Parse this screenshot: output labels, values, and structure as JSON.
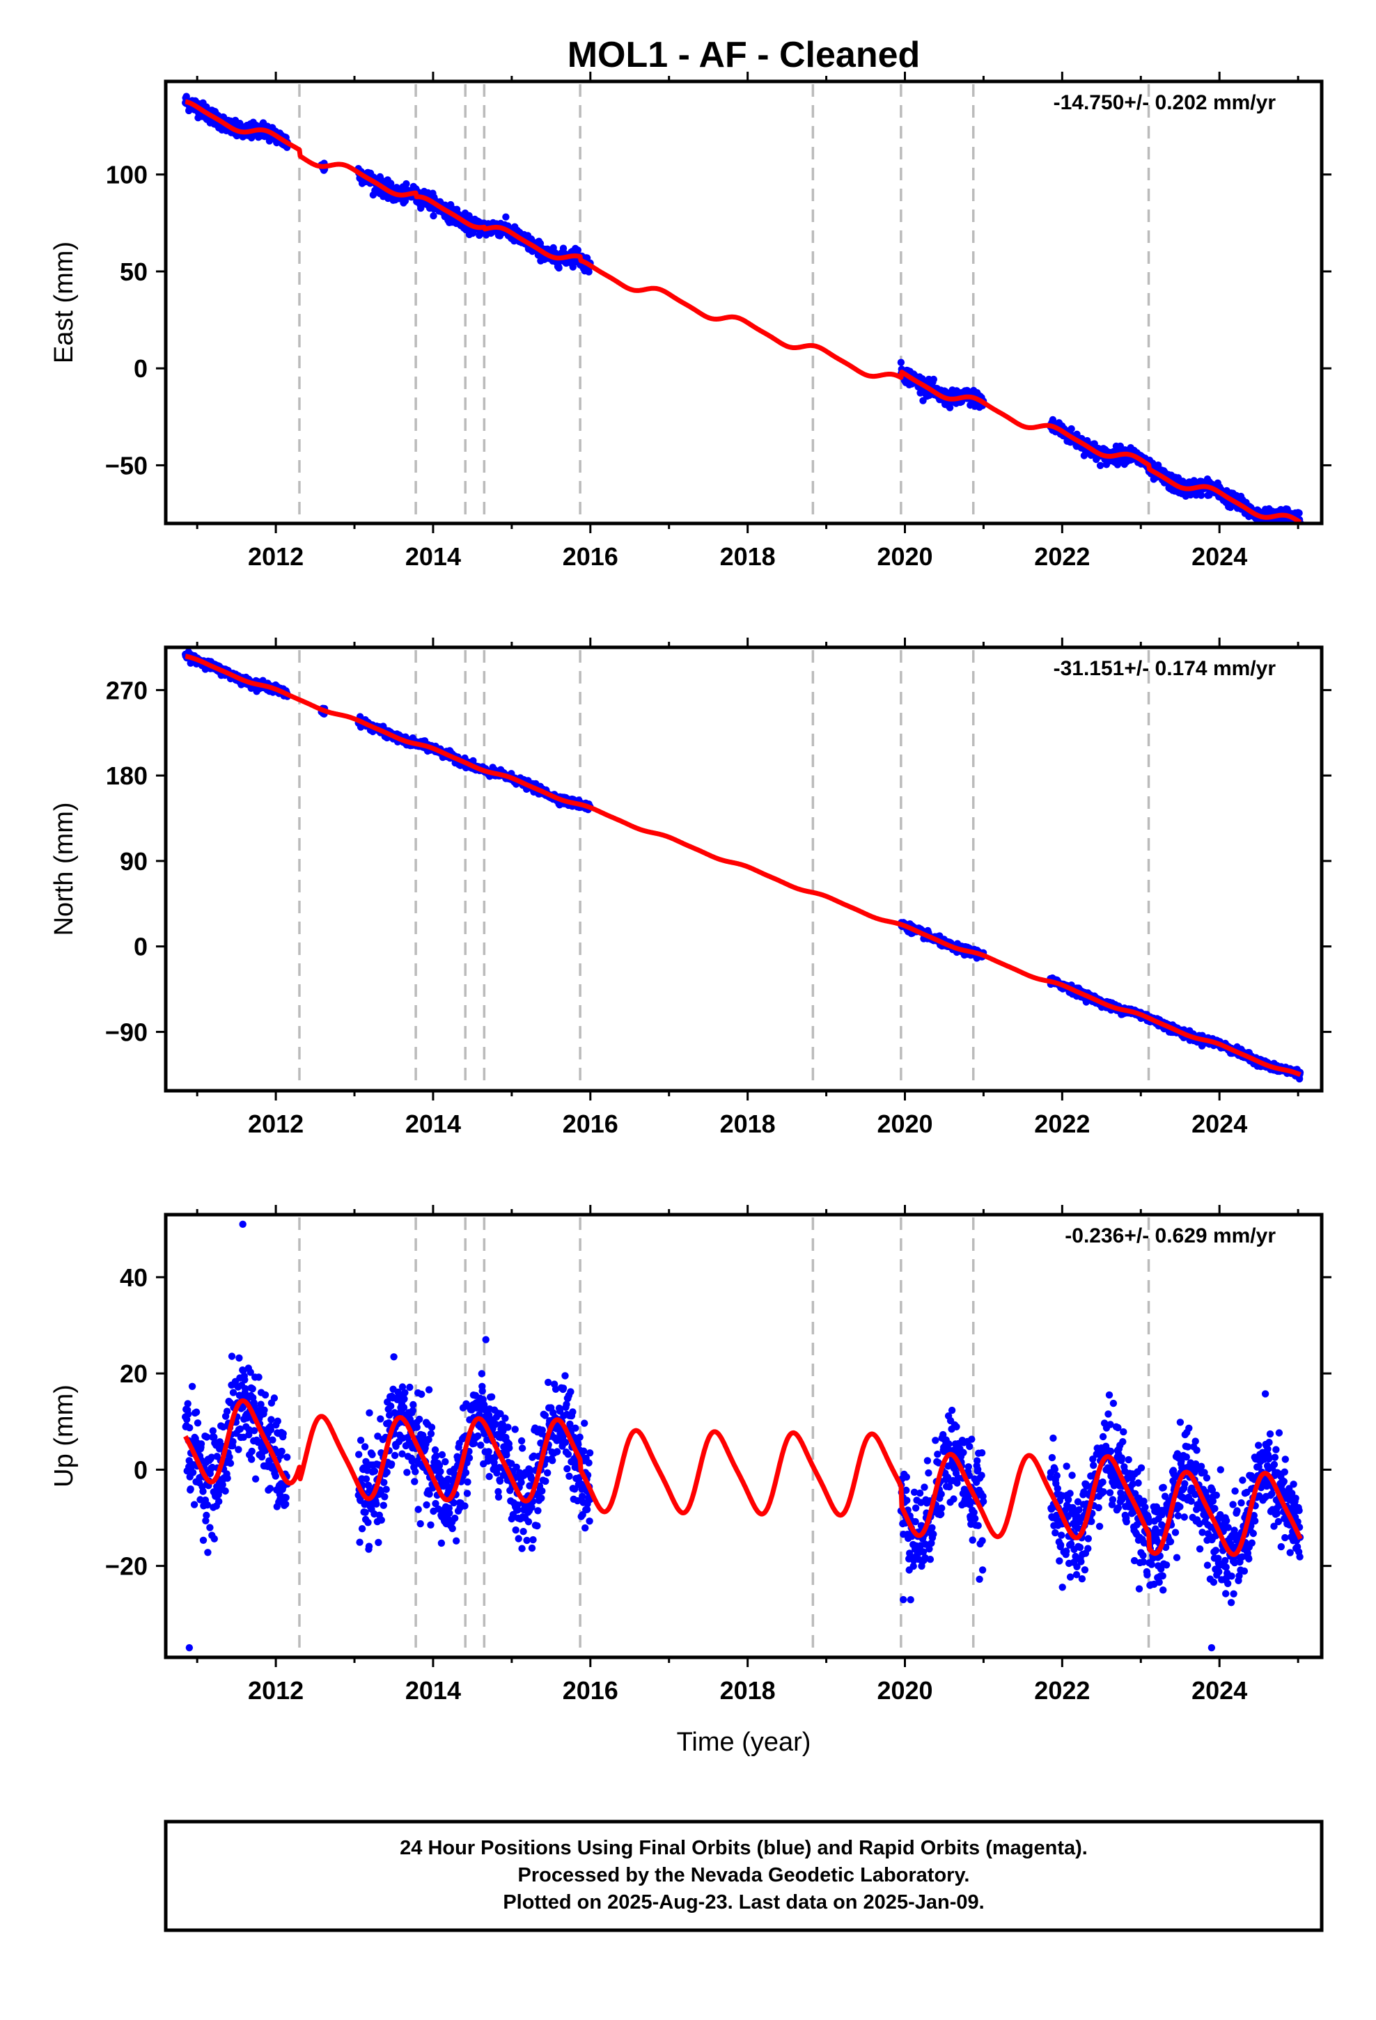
{
  "title": "MOL1  - AF - Cleaned",
  "xlabel": "Time (year)",
  "footer": {
    "line1": "24 Hour Positions Using Final Orbits (blue) and Rapid Orbits (magenta).",
    "line2": "Processed by the Nevada Geodetic Laboratory.",
    "line3": "Plotted on 2025-Aug-23. Last data on 2025-Jan-09."
  },
  "colors": {
    "data": "#0000ff",
    "model": "#ff0000",
    "steps": "#bbbbbb",
    "frame": "#000000"
  },
  "chart_data": [
    {
      "type": "scatter",
      "component": "east",
      "ylabel": "East (mm)",
      "rate_label": "-14.750+/- 0.202 mm/yr",
      "xlim": [
        2010.6,
        2025.3
      ],
      "ylim": [
        -80,
        148
      ],
      "yticks": [
        -50,
        0,
        50,
        100
      ],
      "xticks": [
        2012,
        2014,
        2016,
        2018,
        2020,
        2022,
        2024
      ],
      "step_dates": [
        2012.3,
        2013.78,
        2014.41,
        2014.65,
        2015.87,
        2018.83,
        2019.95,
        2020.87,
        2023.1
      ],
      "data_segments": [
        [
          2010.85,
          2012.15
        ],
        [
          2012.58,
          2012.62
        ],
        [
          2013.05,
          2016.0
        ],
        [
          2019.95,
          2021.0
        ],
        [
          2021.85,
          2025.03
        ]
      ],
      "series": [
        {
          "name": "Final Orbits (blue)",
          "rate": -14.75,
          "intercept": 135,
          "ref_year": 2010.85,
          "annual_amp": 2.5,
          "annual_phase": 0.3,
          "semiannual_amp": 0.6,
          "noise_sd": 2.0
        },
        {
          "name": "model",
          "offsets": [
            [
              2012.3,
              -3
            ],
            [
              2013.78,
              -2
            ],
            [
              2014.65,
              -1
            ],
            [
              2015.87,
              -2
            ],
            [
              2019.95,
              3
            ],
            [
              2023.1,
              -2
            ]
          ]
        }
      ]
    },
    {
      "type": "scatter",
      "component": "north",
      "ylabel": "North (mm)",
      "rate_label": "-31.151+/- 0.174 mm/yr",
      "xlim": [
        2010.6,
        2025.3
      ],
      "ylim": [
        -152,
        315
      ],
      "yticks": [
        -90,
        0,
        90,
        180,
        270
      ],
      "xticks": [
        2012,
        2014,
        2016,
        2018,
        2020,
        2022,
        2024
      ],
      "step_dates": [
        2012.3,
        2013.78,
        2014.41,
        2014.65,
        2015.87,
        2018.83,
        2019.95,
        2020.87,
        2023.1
      ],
      "data_segments": [
        [
          2010.85,
          2012.15
        ],
        [
          2012.58,
          2012.62
        ],
        [
          2013.05,
          2016.0
        ],
        [
          2019.95,
          2021.0
        ],
        [
          2021.85,
          2025.03
        ]
      ],
      "series": [
        {
          "name": "Final Orbits (blue)",
          "rate": -31.151,
          "intercept": 305,
          "ref_year": 2010.85,
          "annual_amp": 1.5,
          "annual_phase": 0.2,
          "semiannual_amp": 0.4,
          "noise_sd": 2.0
        },
        {
          "name": "model",
          "offsets": []
        }
      ]
    },
    {
      "type": "scatter",
      "component": "up",
      "ylabel": "Up (mm)",
      "rate_label": "-0.236+/- 0.629 mm/yr",
      "xlim": [
        2010.6,
        2025.3
      ],
      "ylim": [
        -39,
        53
      ],
      "yticks": [
        -20,
        0,
        20,
        40
      ],
      "xticks": [
        2012,
        2014,
        2016,
        2018,
        2020,
        2022,
        2024
      ],
      "step_dates": [
        2012.3,
        2013.78,
        2014.41,
        2014.65,
        2015.87,
        2018.83,
        2019.95,
        2020.87,
        2023.1
      ],
      "data_segments": [
        [
          2010.85,
          2012.15
        ],
        [
          2013.05,
          2016.0
        ],
        [
          2019.95,
          2021.0
        ],
        [
          2021.85,
          2025.03
        ]
      ],
      "outliers": [
        [
          2011.58,
          51
        ],
        [
          2010.9,
          -37
        ],
        [
          2023.9,
          -37
        ],
        [
          2019.98,
          -27
        ]
      ],
      "series": [
        {
          "name": "Final Orbits (blue)",
          "rate": -0.236,
          "intercept": 6,
          "ref_year": 2010.85,
          "annual_amp": 8,
          "annual_phase": 0.62,
          "semiannual_amp": 1.5,
          "noise_sd": 5.0
        },
        {
          "name": "model",
          "offsets": [
            [
              2012.3,
              -3
            ],
            [
              2015.87,
              -2
            ],
            [
              2019.95,
              -4
            ],
            [
              2023.1,
              -3
            ]
          ]
        }
      ]
    }
  ]
}
